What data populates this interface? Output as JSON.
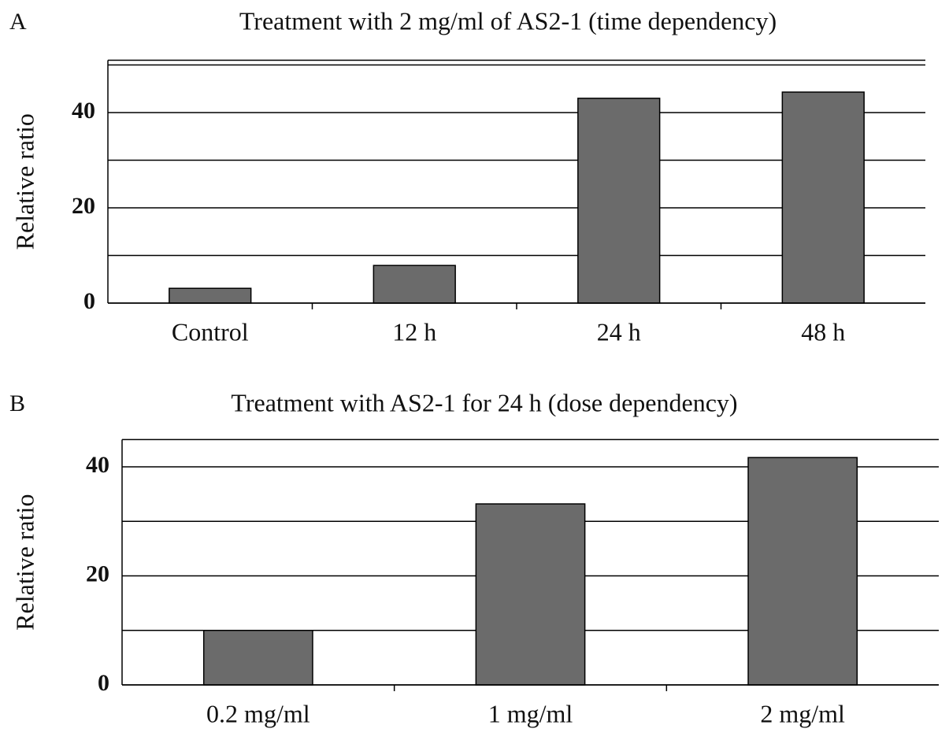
{
  "chart_data": [
    {
      "type": "bar",
      "panel_label": "A",
      "title": "Treatment with 2 mg/ml of AS2-1 (time dependency)",
      "y_label": "Relative ratio",
      "categories": [
        "Control",
        "12 h",
        "24 h",
        "48 h"
      ],
      "values": [
        3.1,
        7.9,
        43.0,
        44.3
      ],
      "color": "#6b6b6b",
      "ylim": [
        0,
        51
      ],
      "yticks": [
        0,
        20,
        40
      ],
      "minor_gridlines": [
        10,
        30,
        50
      ],
      "grid": true
    },
    {
      "type": "bar",
      "panel_label": "B",
      "title": "Treatment with AS2-1 for 24 h (dose dependency)",
      "y_label": "Relative ratio",
      "categories": [
        "0.2 mg/ml",
        "1 mg/ml",
        "2 mg/ml"
      ],
      "values": [
        10.0,
        33.2,
        41.7
      ],
      "color": "#6b6b6b",
      "ylim": [
        0,
        45
      ],
      "yticks": [
        0,
        20,
        40
      ],
      "minor_gridlines": [
        10,
        30
      ],
      "grid": true
    }
  ]
}
